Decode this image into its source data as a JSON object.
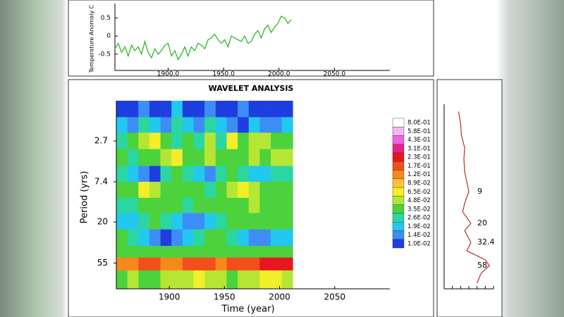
{
  "chart_data": [
    {
      "type": "line",
      "ylabel": "Temperature Anomaly C",
      "color": "#2db82d",
      "x": [
        1852,
        1855,
        1858,
        1861,
        1864,
        1867,
        1870,
        1873,
        1876,
        1879,
        1882,
        1885,
        1888,
        1891,
        1894,
        1897,
        1900,
        1903,
        1906,
        1909,
        1912,
        1915,
        1918,
        1921,
        1924,
        1927,
        1930,
        1933,
        1936,
        1939,
        1942,
        1945,
        1948,
        1951,
        1954,
        1957,
        1960,
        1963,
        1966,
        1969,
        1972,
        1975,
        1978,
        1981,
        1984,
        1987,
        1990,
        1993,
        1996,
        1999,
        2002,
        2005,
        2008,
        2011
      ],
      "values": [
        -0.35,
        -0.2,
        -0.45,
        -0.3,
        -0.55,
        -0.25,
        -0.4,
        -0.3,
        -0.5,
        -0.15,
        -0.45,
        -0.6,
        -0.35,
        -0.5,
        -0.4,
        -0.25,
        -0.2,
        -0.55,
        -0.4,
        -0.65,
        -0.5,
        -0.3,
        -0.55,
        -0.3,
        -0.4,
        -0.2,
        -0.25,
        -0.35,
        -0.1,
        -0.05,
        0.05,
        -0.1,
        -0.2,
        -0.1,
        -0.3,
        0.0,
        -0.05,
        -0.1,
        -0.15,
        0.0,
        -0.2,
        -0.15,
        0.05,
        0.15,
        -0.05,
        0.2,
        0.3,
        0.1,
        0.25,
        0.35,
        0.55,
        0.5,
        0.35,
        0.45
      ],
      "xlim": [
        1852,
        2100
      ],
      "ylim": [
        -0.95,
        0.9
      ],
      "xticks": [
        {
          "value": 1900,
          "label": "1900.0"
        },
        {
          "value": 1950,
          "label": "1950.0"
        },
        {
          "value": 2000,
          "label": "2000.0"
        },
        {
          "value": 2050,
          "label": "2050.0"
        }
      ],
      "yticks": [
        0.5,
        0,
        -0.5
      ]
    },
    {
      "type": "heatmap",
      "title": "WAVELET ANALYSIS",
      "xlabel": "Time (year)",
      "ylabel": "Period (yrs)",
      "xlim": [
        1852,
        2100
      ],
      "ylim": [
        1,
        104
      ],
      "log_y": true,
      "xticks": [
        1900,
        1950,
        2000,
        2050
      ],
      "yticks": [
        2.7,
        7.4,
        20,
        55
      ],
      "x_edges": [
        1852,
        1862,
        1872,
        1882,
        1892,
        1902,
        1912,
        1922,
        1932,
        1942,
        1952,
        1962,
        1972,
        1982,
        1992,
        2002,
        2012
      ],
      "period_edges": [
        1,
        1.5,
        2.2,
        3.3,
        5,
        7.4,
        11,
        16,
        24,
        36,
        48,
        66,
        104
      ],
      "z": [
        [
          0.012,
          0.01,
          0.015,
          0.012,
          0.01,
          0.02,
          0.012,
          0.01,
          0.014,
          0.01,
          0.012,
          0.016,
          0.01,
          0.012,
          0.01,
          0.012
        ],
        [
          0.02,
          0.015,
          0.03,
          0.02,
          0.014,
          0.028,
          0.02,
          0.016,
          0.03,
          0.02,
          0.014,
          0.012,
          0.02,
          0.018,
          0.014,
          0.02
        ],
        [
          0.03,
          0.04,
          0.05,
          0.07,
          0.035,
          0.03,
          0.04,
          0.03,
          0.05,
          0.03,
          0.07,
          0.04,
          0.05,
          0.06,
          0.045,
          0.04
        ],
        [
          0.035,
          0.03,
          0.04,
          0.045,
          0.06,
          0.07,
          0.04,
          0.035,
          0.055,
          0.04,
          0.045,
          0.035,
          0.05,
          0.04,
          0.06,
          0.05
        ],
        [
          0.03,
          0.02,
          0.015,
          0.012,
          0.03,
          0.035,
          0.03,
          0.02,
          0.015,
          0.03,
          0.035,
          0.03,
          0.025,
          0.02,
          0.03,
          0.03
        ],
        [
          0.035,
          0.045,
          0.07,
          0.06,
          0.04,
          0.035,
          0.04,
          0.035,
          0.03,
          0.045,
          0.06,
          0.07,
          0.05,
          0.045,
          0.04,
          0.035
        ],
        [
          0.03,
          0.03,
          0.035,
          0.04,
          0.04,
          0.035,
          0.03,
          0.035,
          0.035,
          0.04,
          0.04,
          0.045,
          0.05,
          0.045,
          0.04,
          0.035
        ],
        [
          0.02,
          0.025,
          0.03,
          0.035,
          0.03,
          0.02,
          0.015,
          0.015,
          0.02,
          0.03,
          0.035,
          0.04,
          0.045,
          0.045,
          0.04,
          0.04
        ],
        [
          0.035,
          0.03,
          0.02,
          0.015,
          0.012,
          0.015,
          0.02,
          0.03,
          0.04,
          0.045,
          0.03,
          0.02,
          0.015,
          0.015,
          0.02,
          0.025
        ],
        [
          0.04,
          0.045,
          0.04,
          0.035,
          0.035,
          0.04,
          0.045,
          0.04,
          0.035,
          0.035,
          0.04,
          0.045,
          0.04,
          0.04,
          0.045,
          0.045
        ],
        [
          0.15,
          0.16,
          0.17,
          0.17,
          0.16,
          0.16,
          0.17,
          0.17,
          0.17,
          0.16,
          0.17,
          0.18,
          0.2,
          0.24,
          0.25,
          0.25
        ],
        [
          0.045,
          0.05,
          0.045,
          0.04,
          0.05,
          0.055,
          0.06,
          0.07,
          0.06,
          0.05,
          0.045,
          0.05,
          0.06,
          0.065,
          0.07,
          0.06
        ]
      ],
      "levels": [
        {
          "value": 0.8,
          "label": "8.0E-01"
        },
        {
          "value": 0.58,
          "label": "5.8E-01"
        },
        {
          "value": 0.43,
          "label": "4.3E-01"
        },
        {
          "value": 0.31,
          "label": "3.1E-01"
        },
        {
          "value": 0.23,
          "label": "2.3E-01"
        },
        {
          "value": 0.17,
          "label": "1.7E-01"
        },
        {
          "value": 0.12,
          "label": "1.2E-01"
        },
        {
          "value": 0.089,
          "label": "8.9E-02"
        },
        {
          "value": 0.065,
          "label": "6.5E-02"
        },
        {
          "value": 0.048,
          "label": "4.8E-02"
        },
        {
          "value": 0.035,
          "label": "3.5E-02"
        },
        {
          "value": 0.026,
          "label": "2.6E-02"
        },
        {
          "value": 0.019,
          "label": "1.9E-02"
        },
        {
          "value": 0.014,
          "label": "1.4E-02"
        },
        {
          "value": 0.01,
          "label": "1.0E-02"
        }
      ],
      "colors": [
        "#ffffff",
        "#f7b6f0",
        "#ee66e0",
        "#e8208a",
        "#e8161e",
        "#f24f1a",
        "#f7891c",
        "#f9c23a",
        "#f2ee2a",
        "#b6e634",
        "#4cd23c",
        "#2cd6a0",
        "#22c8ee",
        "#3c8ef6",
        "#1f3ee0"
      ]
    },
    {
      "type": "spectrum",
      "color": "#b0302a",
      "xlim": [
        0,
        0.12
      ],
      "ylim": [
        1,
        104
      ],
      "log_y": true,
      "xticks": [
        0,
        0.02,
        0.04,
        0.06,
        0.08,
        0.1,
        0.12
      ],
      "periods": [
        1.2,
        1.6,
        2.2,
        3,
        4,
        5.5,
        7,
        9,
        12,
        15,
        20,
        24,
        32.4,
        40,
        50,
        58,
        70,
        90
      ],
      "power": [
        0.035,
        0.04,
        0.042,
        0.05,
        0.048,
        0.05,
        0.055,
        0.06,
        0.05,
        0.045,
        0.065,
        0.05,
        0.065,
        0.055,
        0.1,
        0.11,
        0.09,
        0.08
      ],
      "peaks": [
        9,
        20,
        32.4,
        58
      ]
    }
  ]
}
